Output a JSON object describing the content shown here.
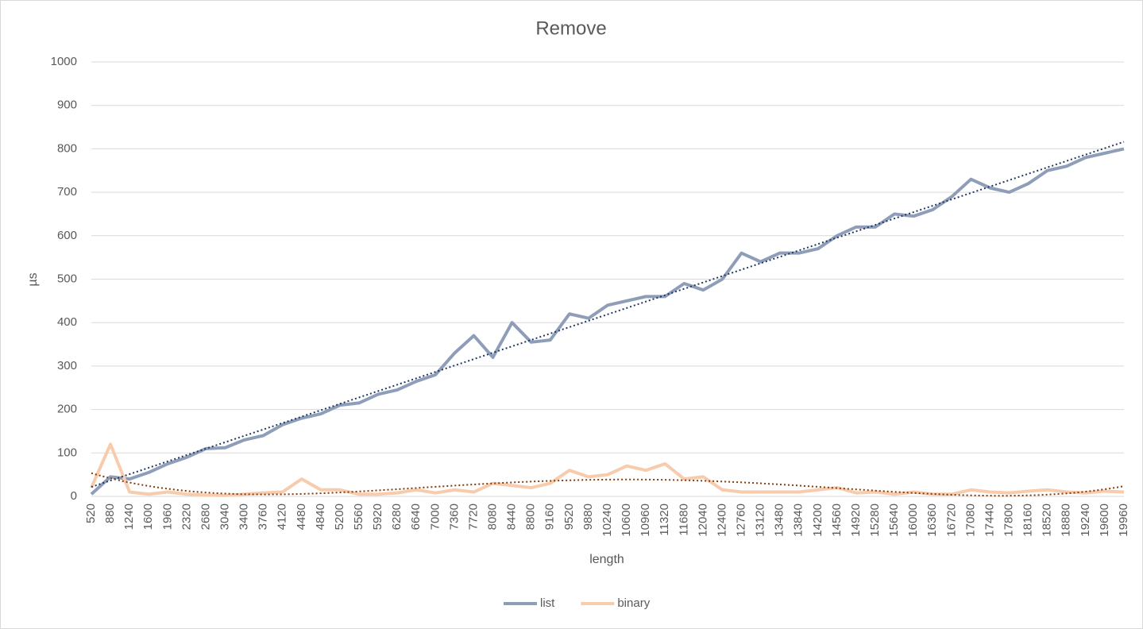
{
  "chart_data": {
    "type": "line",
    "title": "Remove",
    "x_label": "length",
    "y_label": "µs",
    "categories": [
      "520",
      "880",
      "1240",
      "1600",
      "1960",
      "2320",
      "2680",
      "3040",
      "3400",
      "3760",
      "4120",
      "4480",
      "4840",
      "5200",
      "5560",
      "5920",
      "6280",
      "6640",
      "7000",
      "7360",
      "7720",
      "8080",
      "8440",
      "8800",
      "9160",
      "9520",
      "9880",
      "10240",
      "10600",
      "10960",
      "11320",
      "11680",
      "12040",
      "12400",
      "12760",
      "13120",
      "13480",
      "13840",
      "14200",
      "14560",
      "14920",
      "15280",
      "15640",
      "16000",
      "16360",
      "16720",
      "17080",
      "17440",
      "17800",
      "18160",
      "18520",
      "18880",
      "19240",
      "19600",
      "19960"
    ],
    "series": [
      {
        "name": "list",
        "color": "#8f9eb8",
        "trend": "linear",
        "trend_color": "#203864",
        "values": [
          5,
          45,
          40,
          55,
          75,
          90,
          110,
          112,
          130,
          140,
          165,
          180,
          190,
          210,
          215,
          235,
          245,
          265,
          280,
          330,
          370,
          320,
          400,
          355,
          360,
          420,
          410,
          440,
          450,
          460,
          460,
          490,
          475,
          500,
          560,
          540,
          560,
          560,
          570,
          600,
          620,
          620,
          650,
          645,
          660,
          690,
          730,
          710,
          700,
          720,
          750,
          760,
          780,
          790,
          800
        ]
      },
      {
        "name": "binary",
        "color": "#f8cbad",
        "trend": "polynomial",
        "trend_color": "#843c0c",
        "values": [
          20,
          120,
          10,
          5,
          10,
          5,
          3,
          2,
          5,
          8,
          10,
          40,
          15,
          15,
          5,
          5,
          8,
          15,
          8,
          15,
          10,
          30,
          25,
          20,
          30,
          60,
          45,
          50,
          70,
          60,
          75,
          40,
          45,
          15,
          10,
          10,
          10,
          10,
          15,
          20,
          8,
          10,
          5,
          10,
          5,
          5,
          15,
          10,
          8,
          12,
          15,
          10,
          8,
          12,
          10
        ]
      }
    ],
    "ylim": [
      0,
      1000
    ],
    "yticks": [
      0,
      100,
      200,
      300,
      400,
      500,
      600,
      700,
      800,
      900,
      1000
    ],
    "grid": true
  }
}
